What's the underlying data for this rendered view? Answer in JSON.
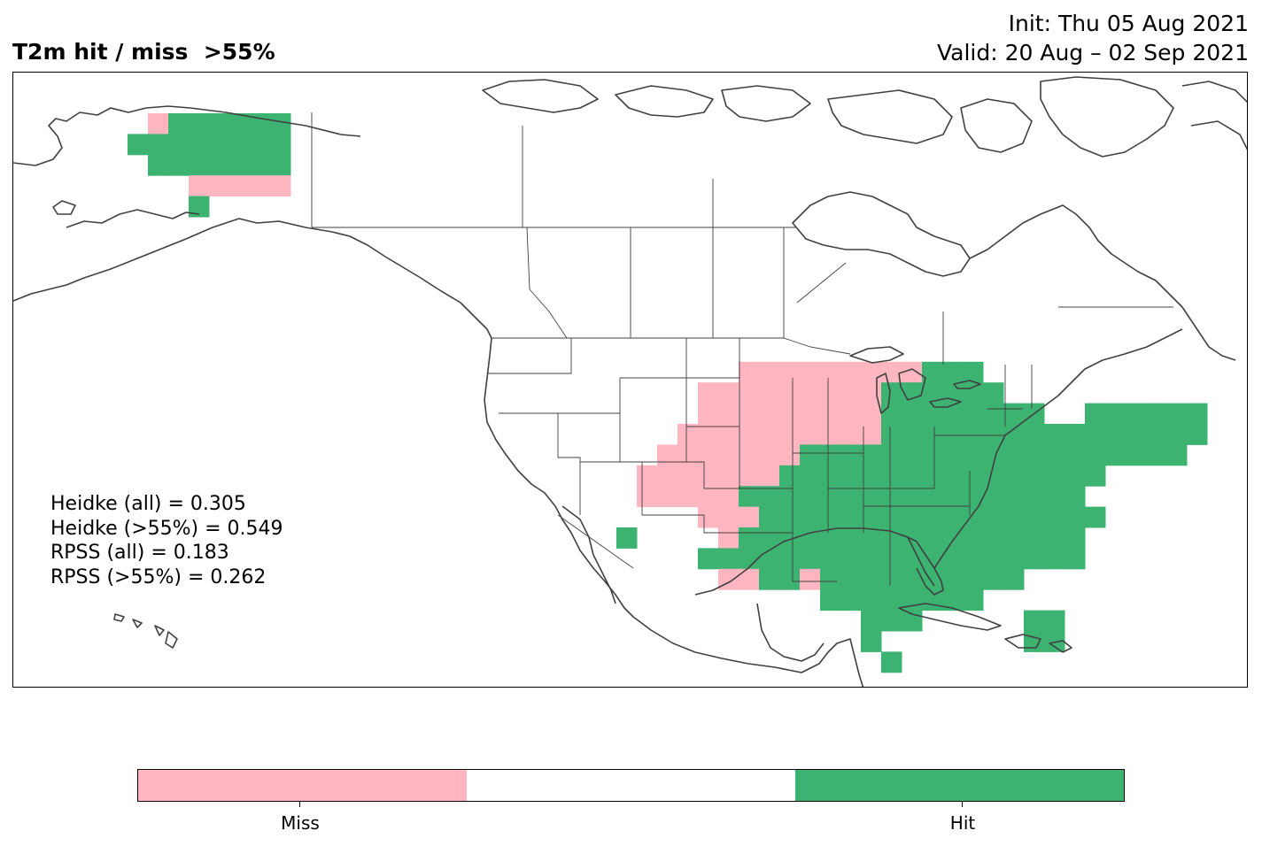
{
  "title": "T2m hit / miss  >55%",
  "init": "Init: Thu 05 Aug 2021",
  "valid": "Valid: 20 Aug – 02 Sep 2021",
  "stats": [
    "Heidke (all) = 0.305",
    "Heidke (>55%) = 0.549",
    "RPSS (all) = 0.183",
    "RPSS (>55%) = 0.262"
  ],
  "colors": {
    "miss": "#ffb6c1",
    "neutral": "#ffffff",
    "hit": "#3cb371",
    "coast": "#404040"
  },
  "colorbar": {
    "miss_label": "Miss",
    "hit_label": "Hit"
  }
}
